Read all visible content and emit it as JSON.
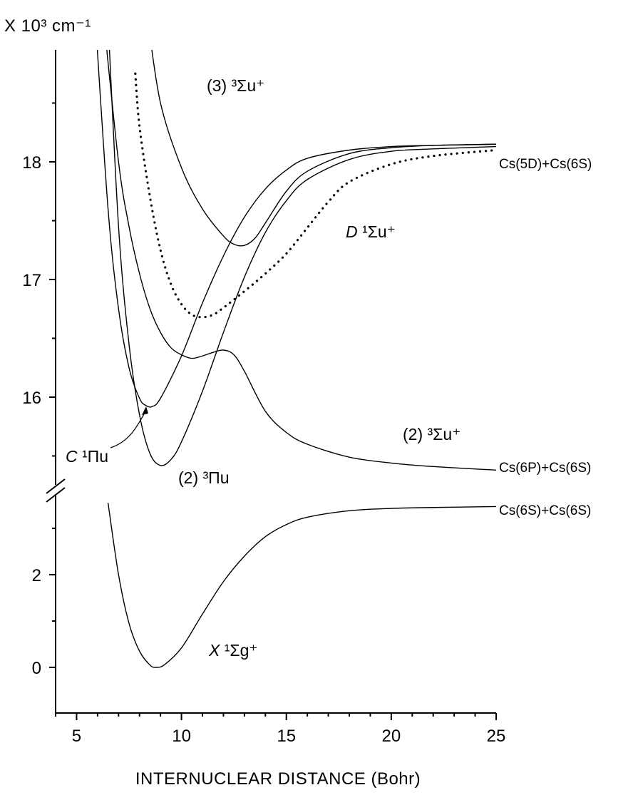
{
  "chart_data": {
    "type": "line",
    "title": "",
    "xlabel": "INTERNUCLEAR  DISTANCE (Bohr)",
    "ylabel": "X 10³ cm⁻¹",
    "xlim": [
      4,
      25
    ],
    "x_ticks": [
      "5",
      "10",
      "15",
      "20",
      "25"
    ],
    "y_broken_axis": true,
    "upper_ylim": [
      15.0,
      19.0
    ],
    "upper_y_ticks": [
      "16",
      "17",
      "18"
    ],
    "lower_ylim": [
      -0.4,
      3.6
    ],
    "lower_y_ticks": [
      "0",
      "2"
    ],
    "grid": false,
    "series": [
      {
        "name": "X ¹Σg⁺",
        "style": "solid",
        "panel": "lower",
        "x": [
          6.5,
          7.0,
          7.5,
          8.0,
          8.5,
          8.8,
          9.2,
          10.0,
          11.0,
          12.0,
          13.0,
          14.0,
          15.0,
          16.0,
          18.0,
          20.0,
          22.0,
          25.0
        ],
        "y": [
          3.55,
          2.0,
          0.95,
          0.35,
          0.05,
          0.0,
          0.06,
          0.42,
          1.15,
          1.85,
          2.4,
          2.82,
          3.08,
          3.24,
          3.38,
          3.43,
          3.45,
          3.47
        ]
      },
      {
        "name": "(2) ³Πu",
        "style": "solid",
        "panel": "upper",
        "x": [
          6.5,
          7.0,
          7.5,
          8.0,
          8.5,
          9.0,
          9.5,
          10.0,
          11.0,
          12.0,
          13.0,
          14.0,
          15.0,
          16.0,
          18.0,
          20.0,
          22.0,
          25.0
        ],
        "y": [
          19.2,
          17.45,
          16.45,
          15.85,
          15.52,
          15.42,
          15.47,
          15.62,
          16.05,
          16.55,
          17.02,
          17.4,
          17.67,
          17.85,
          18.02,
          18.09,
          18.11,
          18.13
        ]
      },
      {
        "name": "C ¹Πu",
        "style": "solid",
        "panel": "upper",
        "x": [
          5.9,
          6.5,
          7.0,
          7.5,
          8.0,
          8.3,
          8.6,
          9.0,
          10.0,
          11.0,
          12.0,
          13.0,
          14.0,
          15.0,
          16.0,
          18.0,
          20.0,
          22.0,
          25.0
        ],
        "y": [
          19.2,
          17.6,
          16.75,
          16.25,
          15.99,
          15.93,
          15.92,
          15.99,
          16.35,
          16.8,
          17.2,
          17.53,
          17.77,
          17.93,
          18.03,
          18.1,
          18.13,
          18.14,
          18.15
        ]
      },
      {
        "name": "(2) ³Σu⁺",
        "style": "solid",
        "panel": "upper",
        "x": [
          6.3,
          7.0,
          7.5,
          8.0,
          8.5,
          9.0,
          9.5,
          10.0,
          10.5,
          11.0,
          11.5,
          12.0,
          12.5,
          13.0,
          14.0,
          15.0,
          16.0,
          18.0,
          20.0,
          22.0,
          25.0
        ],
        "y": [
          19.2,
          18.0,
          17.45,
          17.05,
          16.75,
          16.55,
          16.42,
          16.36,
          16.33,
          16.35,
          16.38,
          16.4,
          16.36,
          16.22,
          15.88,
          15.7,
          15.6,
          15.49,
          15.44,
          15.41,
          15.38
        ]
      },
      {
        "name": "D ¹Σu⁺",
        "style": "dotted",
        "panel": "upper",
        "x": [
          7.8,
          8.0,
          8.5,
          9.0,
          9.5,
          10.0,
          10.5,
          11.0,
          11.5,
          12.0,
          13.0,
          14.0,
          15.0,
          16.0,
          17.0,
          18.0,
          20.0,
          22.0,
          25.0
        ],
        "y": [
          18.75,
          18.3,
          17.7,
          17.25,
          16.96,
          16.79,
          16.7,
          16.68,
          16.7,
          16.76,
          16.9,
          17.05,
          17.22,
          17.44,
          17.66,
          17.83,
          17.98,
          18.05,
          18.1
        ]
      },
      {
        "name": "(3) ³Σu⁺",
        "style": "solid",
        "panel": "upper",
        "x": [
          8.4,
          9.0,
          10.0,
          11.0,
          12.0,
          12.5,
          13.0,
          13.5,
          14.0,
          15.0,
          16.0,
          18.0,
          20.0,
          22.0,
          25.0
        ],
        "y": [
          19.2,
          18.5,
          17.95,
          17.6,
          17.37,
          17.3,
          17.29,
          17.35,
          17.48,
          17.75,
          17.92,
          18.07,
          18.12,
          18.14,
          18.15
        ]
      }
    ],
    "annotations": {
      "d_label_italic": "D",
      "d_label_rest": " ¹Σu⁺",
      "s3_label": "(3) ³Σu⁺",
      "c_label_italic": "C",
      "c_label_rest": " ¹Πu",
      "p3_label": "(2) ³Πu",
      "s2_label": "(2) ³Σu⁺",
      "x_label_italic": "X",
      "x_label_rest": " ¹Σg⁺",
      "asym_5d": "Cs(5D)+Cs(6S)",
      "asym_6p": "Cs(6P)+Cs(6S)",
      "asym_6s": "Cs(6S)+Cs(6S)"
    }
  }
}
